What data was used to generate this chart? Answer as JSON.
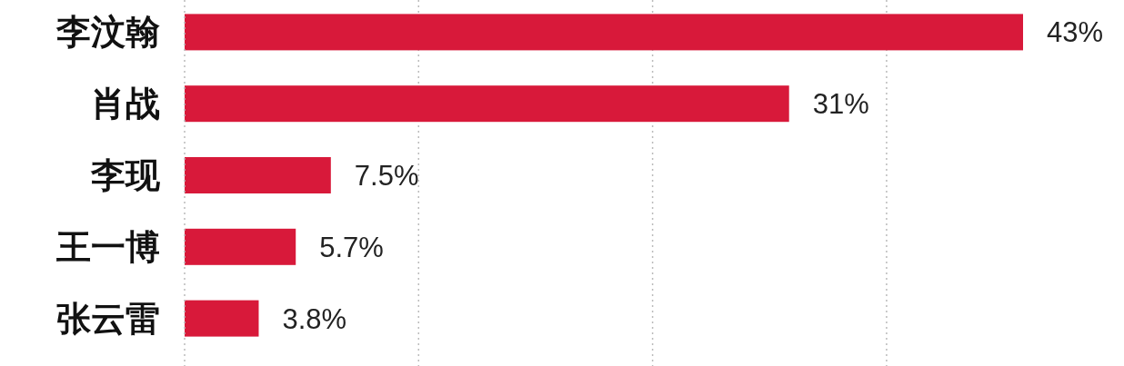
{
  "chart_data": {
    "type": "bar",
    "orientation": "horizontal",
    "categories": [
      "李汶翰",
      "肖战",
      "李现",
      "王一博",
      "张云雷"
    ],
    "values": [
      43,
      31,
      7.5,
      5.7,
      3.8
    ],
    "value_labels": [
      "43%",
      "31%",
      "7.5%",
      "5.7%",
      "3.8%"
    ],
    "color": "#d8193a",
    "xticks": [
      {
        "value": 12,
        "label": null
      },
      {
        "value": 24,
        "label": null
      },
      {
        "value": 36,
        "label": null
      }
    ],
    "grid": "x"
  }
}
